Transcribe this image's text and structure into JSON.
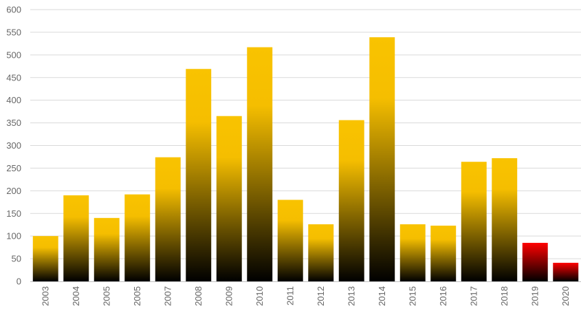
{
  "chart_data": {
    "type": "bar",
    "categories": [
      "2003",
      "2004",
      "2005",
      "2005",
      "2007",
      "2008",
      "2009",
      "2010",
      "2011",
      "2012",
      "2013",
      "2014",
      "2015",
      "2016",
      "2017",
      "2018",
      "2019",
      "2020"
    ],
    "values": [
      100,
      190,
      140,
      192,
      274,
      469,
      365,
      517,
      180,
      126,
      356,
      539,
      126,
      123,
      264,
      272,
      85,
      41
    ],
    "ylim": [
      0,
      600
    ],
    "yticks": [
      0,
      50,
      100,
      150,
      200,
      250,
      300,
      350,
      400,
      450,
      500,
      550,
      600
    ],
    "grid": true,
    "legend": "none",
    "colors": {
      "bar_top": "#f9c300",
      "bar_bottom": "#000000",
      "highlight_top": "#ff0000",
      "highlight_bottom": "#000000",
      "grid": "#d9d9d9",
      "axis": "#bfbfbf",
      "tick_text": "#666666"
    },
    "highlighted_categories": [
      "2019",
      "2020"
    ]
  }
}
